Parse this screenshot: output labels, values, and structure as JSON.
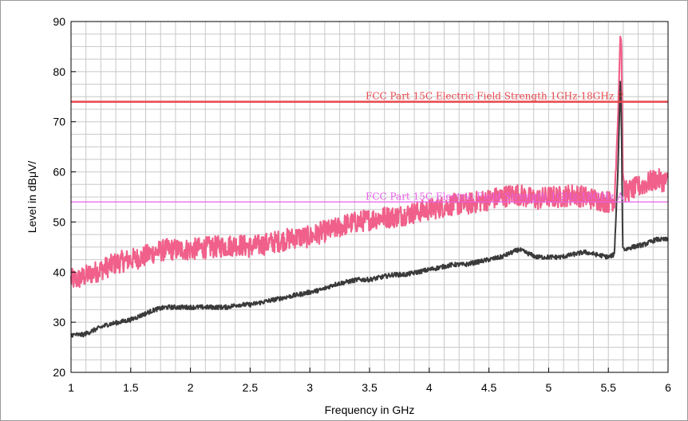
{
  "chart_data": {
    "type": "line",
    "xlabel": "Frequency in GHz",
    "ylabel": "Level in dBμV/",
    "xlim": [
      1,
      6
    ],
    "ylim": [
      20,
      90
    ],
    "x_ticks": [
      "1",
      "1.5",
      "2",
      "2.5",
      "3",
      "3.5",
      "4",
      "4.5",
      "5",
      "5.5",
      "6"
    ],
    "y_ticks": [
      "20",
      "30",
      "40",
      "50",
      "60",
      "70",
      "80",
      "90"
    ],
    "grid": true,
    "limit_lines": [
      {
        "label": "FCC Part 15C Electric Field Strength 1GHz-18GHz P",
        "value": 74,
        "color": "#e8474c"
      },
      {
        "label": "FCC Part 15C Electric Field Strength 1GHz-18GHz A",
        "value": 54,
        "color": "#e85ee8"
      }
    ],
    "series": [
      {
        "color": "#f0608a",
        "style": "peak-noise",
        "x": [
          1.0,
          1.05,
          1.1,
          1.2,
          1.3,
          1.4,
          1.5,
          1.6,
          1.7,
          1.8,
          1.9,
          2.0,
          2.1,
          2.2,
          2.3,
          2.4,
          2.5,
          2.6,
          2.7,
          2.8,
          2.9,
          3.0,
          3.1,
          3.2,
          3.3,
          3.4,
          3.5,
          3.6,
          3.7,
          3.8,
          3.9,
          4.0,
          4.1,
          4.2,
          4.3,
          4.4,
          4.5,
          4.6,
          4.7,
          4.75,
          4.8,
          4.9,
          5.0,
          5.1,
          5.2,
          5.3,
          5.4,
          5.5,
          5.55,
          5.58,
          5.6,
          5.61,
          5.62,
          5.64,
          5.7,
          5.8,
          5.9,
          6.0
        ],
        "values": [
          38.5,
          38.5,
          39,
          40,
          41,
          42,
          42.5,
          43,
          44,
          44.5,
          44.5,
          44.5,
          44.8,
          45,
          45.2,
          45.5,
          45,
          45.5,
          46,
          46.5,
          47,
          47,
          48,
          48.5,
          49.5,
          50,
          50.5,
          51,
          51,
          51.5,
          52,
          52.5,
          53,
          53.5,
          53.5,
          54,
          54.5,
          55,
          55.5,
          55.5,
          55,
          54.5,
          55,
          55,
          55.5,
          55,
          54.5,
          54,
          54.5,
          70,
          87,
          86,
          60,
          56,
          56.5,
          57.5,
          58.5,
          58
        ]
      },
      {
        "color": "#3a3a3a",
        "style": "average",
        "x": [
          1.0,
          1.05,
          1.1,
          1.2,
          1.3,
          1.4,
          1.5,
          1.6,
          1.7,
          1.8,
          1.9,
          2.0,
          2.1,
          2.2,
          2.3,
          2.4,
          2.5,
          2.6,
          2.7,
          2.8,
          2.9,
          3.0,
          3.1,
          3.2,
          3.3,
          3.4,
          3.5,
          3.6,
          3.7,
          3.8,
          3.9,
          4.0,
          4.1,
          4.2,
          4.3,
          4.4,
          4.5,
          4.6,
          4.7,
          4.75,
          4.8,
          4.9,
          5.0,
          5.1,
          5.2,
          5.3,
          5.4,
          5.5,
          5.55,
          5.58,
          5.6,
          5.61,
          5.62,
          5.64,
          5.7,
          5.8,
          5.9,
          6.0
        ],
        "values": [
          27.5,
          27.5,
          27.5,
          28.5,
          29.5,
          30,
          30.5,
          31.5,
          32.5,
          33,
          33,
          33,
          33,
          33,
          33,
          33.5,
          33.5,
          34,
          34.5,
          35,
          35.5,
          36,
          36.5,
          37.5,
          38,
          38.5,
          38.5,
          39,
          39.5,
          39.5,
          40,
          40.5,
          41,
          41.5,
          41.5,
          42,
          42.5,
          43,
          44,
          44.5,
          44,
          43,
          43,
          43,
          43.5,
          44,
          43.5,
          43,
          43.5,
          60,
          78,
          70,
          45,
          44.5,
          45,
          45.5,
          46.5,
          46.5
        ]
      }
    ]
  }
}
